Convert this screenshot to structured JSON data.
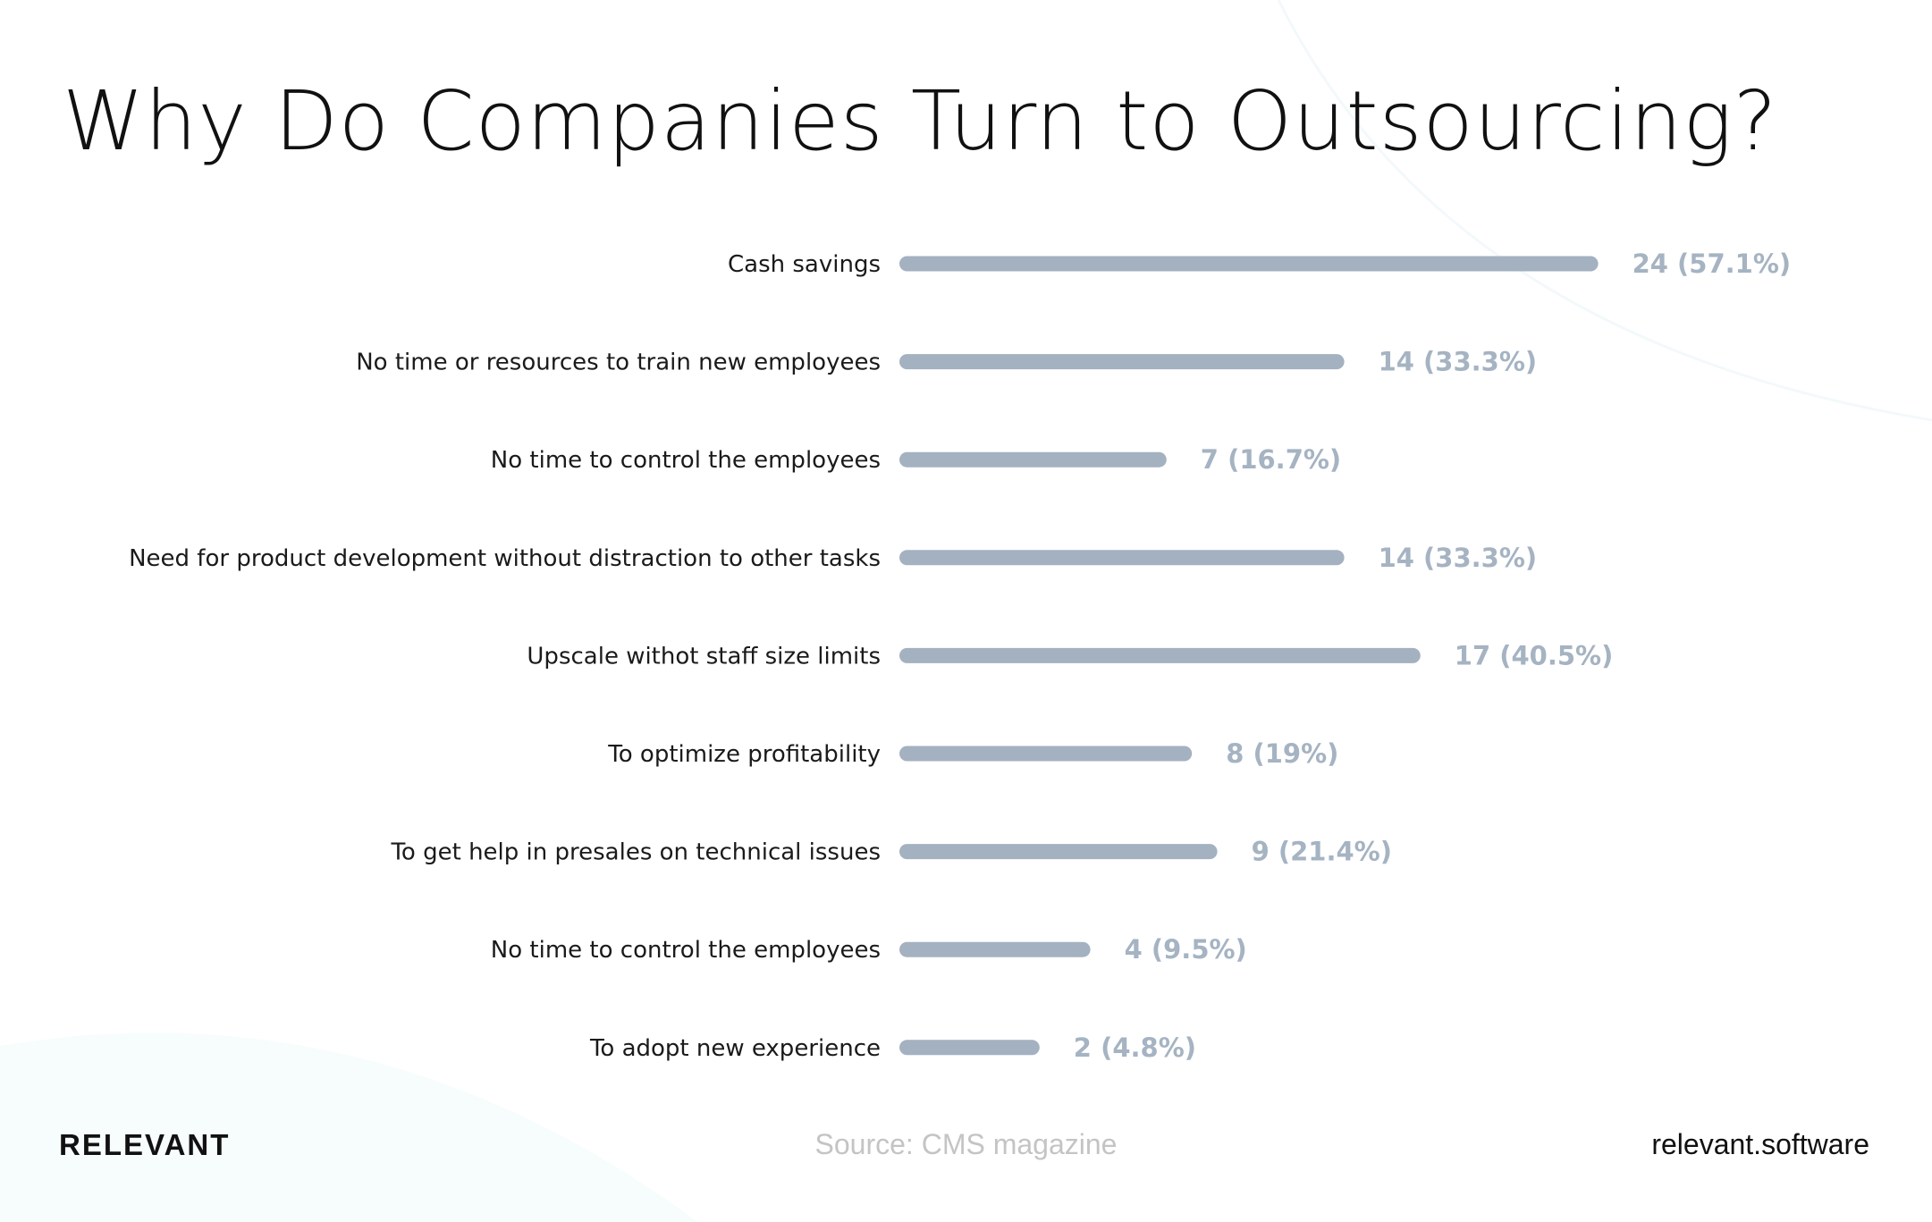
{
  "chart_data": {
    "type": "bar",
    "orientation": "horizontal",
    "title": "Why Do Companies Turn to Outsourcing?",
    "categories": [
      "Cash savings",
      "No time or resources to train new employees",
      "No time to control the employees",
      "Need for product development without distraction to other tasks",
      "Upscale withot staff size limits",
      "To optimize profitability",
      "To get help in presales on technical issues",
      "No time to control the employees",
      "To adopt new experience"
    ],
    "values": [
      24,
      14,
      7,
      14,
      17,
      8,
      9,
      4,
      2
    ],
    "data_labels": [
      "24 (57.1%)",
      "14 (33.3%)",
      "7 (16.7%)",
      "14 (33.3%)",
      "17 (40.5%)",
      "8 (19%)",
      "9 (21.4%)",
      "4 (9.5%)",
      "2 (4.8%)"
    ],
    "grid": false,
    "bar_color": "#a3b1c1",
    "label_color": "#a5b3c2"
  },
  "footer": {
    "logo": "RELEVANT",
    "source": "Source: CMS magazine",
    "site": "relevant.software"
  }
}
